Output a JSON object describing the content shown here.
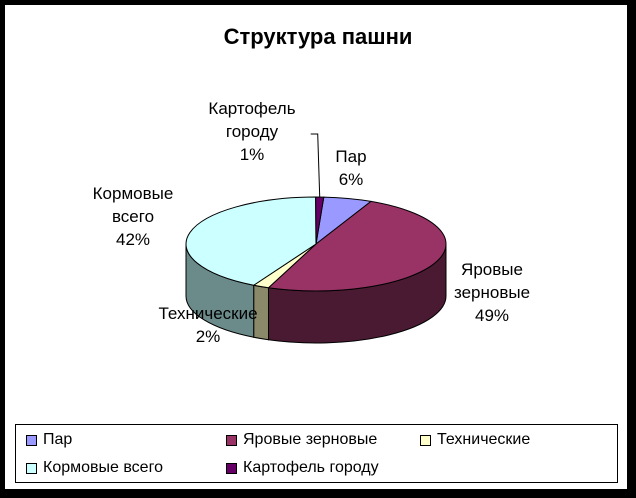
{
  "chart_data": {
    "type": "pie",
    "title": "Структура пашни",
    "slices": [
      {
        "name": "Пар",
        "value": 6,
        "label_lines": [
          "Пар",
          "6%"
        ],
        "color": "#9999ff",
        "side": "#6f6fbf"
      },
      {
        "name": "Яровые зерновые",
        "value": 49,
        "label_lines": [
          "Яровые",
          "зерновые",
          "49%"
        ],
        "color": "#993366",
        "side": "#4a1a33"
      },
      {
        "name": "Технические",
        "value": 2,
        "label_lines": [
          "Технические",
          "2%"
        ],
        "color": "#ffffcc",
        "side": "#8a8a6a"
      },
      {
        "name": "Кормовые всего",
        "value": 42,
        "label_lines": [
          "Кормовые",
          "всего",
          "42%"
        ],
        "color": "#ccffff",
        "side": "#6b8a8a"
      },
      {
        "name": "Картофель городу",
        "value": 1,
        "label_lines": [
          "Картофель",
          "городу",
          "1%"
        ],
        "color": "#660066",
        "side": "#330033"
      }
    ],
    "legend_placement": "bottom",
    "three_d": true
  }
}
